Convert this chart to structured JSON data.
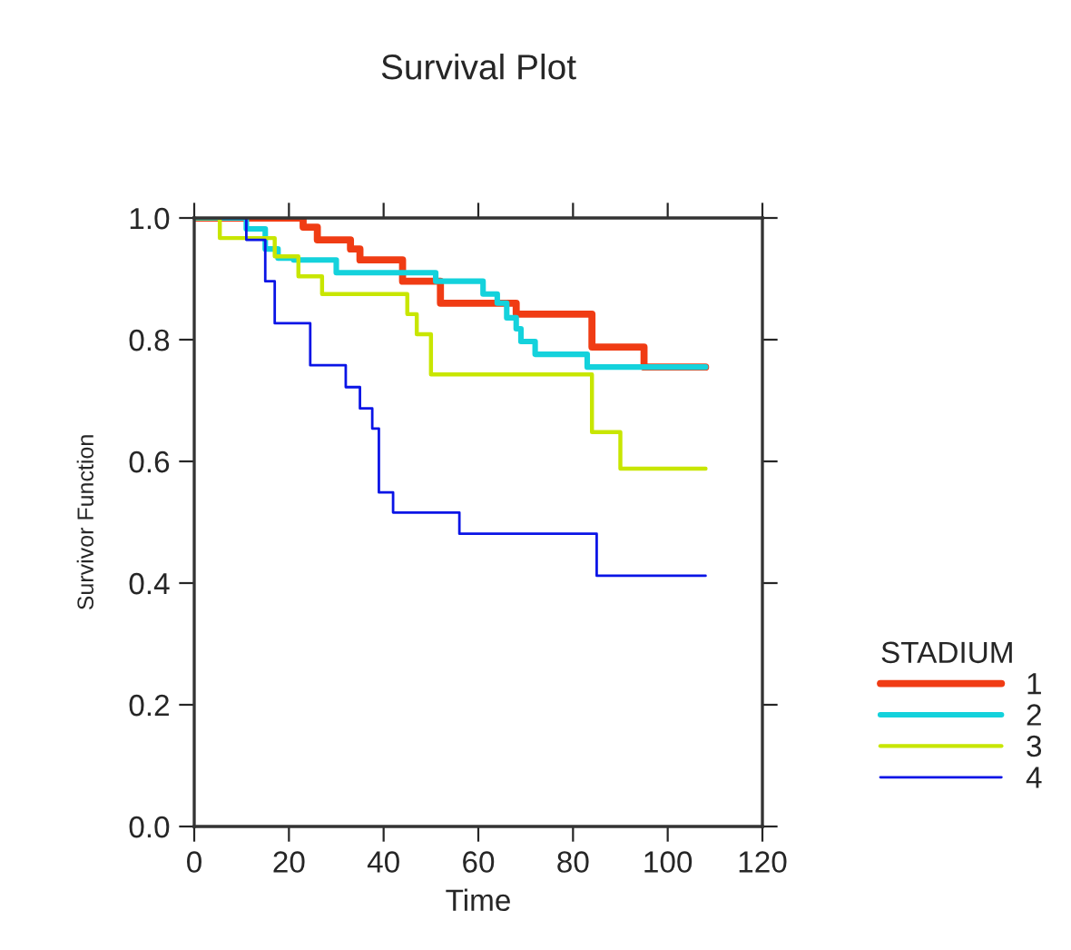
{
  "chart_data": {
    "type": "step",
    "title": "Survival Plot",
    "xlabel": "Time",
    "ylabel": "Survivor Function",
    "legend_title": "STADIUM",
    "legend": "right",
    "grid": false,
    "marker": "none",
    "line_style": "solid",
    "xlim": [
      0,
      120
    ],
    "xticks": [
      0,
      20,
      40,
      60,
      80,
      100,
      120
    ],
    "ylim": [
      0,
      1
    ],
    "yticks": [
      {
        "value": 0,
        "label": "0.0"
      },
      0.2,
      0.4,
      0.6,
      0.8,
      {
        "value": 1,
        "label": "1.0"
      }
    ],
    "series": [
      {
        "name": "1",
        "color": "#f03c14",
        "x": [
          0,
          23,
          26,
          33,
          35,
          44,
          52,
          68,
          84,
          95,
          108
        ],
        "values": [
          1.0,
          0.985,
          0.964,
          0.949,
          0.931,
          0.896,
          0.86,
          0.842,
          0.788,
          0.755,
          0.755
        ]
      },
      {
        "name": "2",
        "color": "#14d2dc",
        "x": [
          0,
          11,
          15,
          17.7,
          21,
          30,
          51,
          61,
          64,
          66,
          68,
          69,
          72,
          83,
          108
        ],
        "values": [
          1.0,
          0.982,
          0.949,
          0.934,
          0.931,
          0.91,
          0.896,
          0.875,
          0.86,
          0.836,
          0.818,
          0.797,
          0.776,
          0.755,
          0.755
        ]
      },
      {
        "name": "3",
        "color": "#c8e600",
        "x": [
          0,
          5.4,
          17,
          22,
          27,
          45,
          47,
          50,
          84,
          90,
          108
        ],
        "values": [
          1.0,
          0.967,
          0.937,
          0.904,
          0.875,
          0.842,
          0.809,
          0.743,
          0.648,
          0.588,
          0.588
        ]
      },
      {
        "name": "4",
        "color": "#0a14e6",
        "x": [
          0,
          11,
          15,
          17,
          24.5,
          32,
          35,
          37.6,
          39,
          42,
          56,
          85,
          108
        ],
        "values": [
          1.0,
          0.964,
          0.896,
          0.827,
          0.758,
          0.722,
          0.687,
          0.654,
          0.549,
          0.516,
          0.481,
          0.412,
          0.412
        ]
      }
    ]
  }
}
